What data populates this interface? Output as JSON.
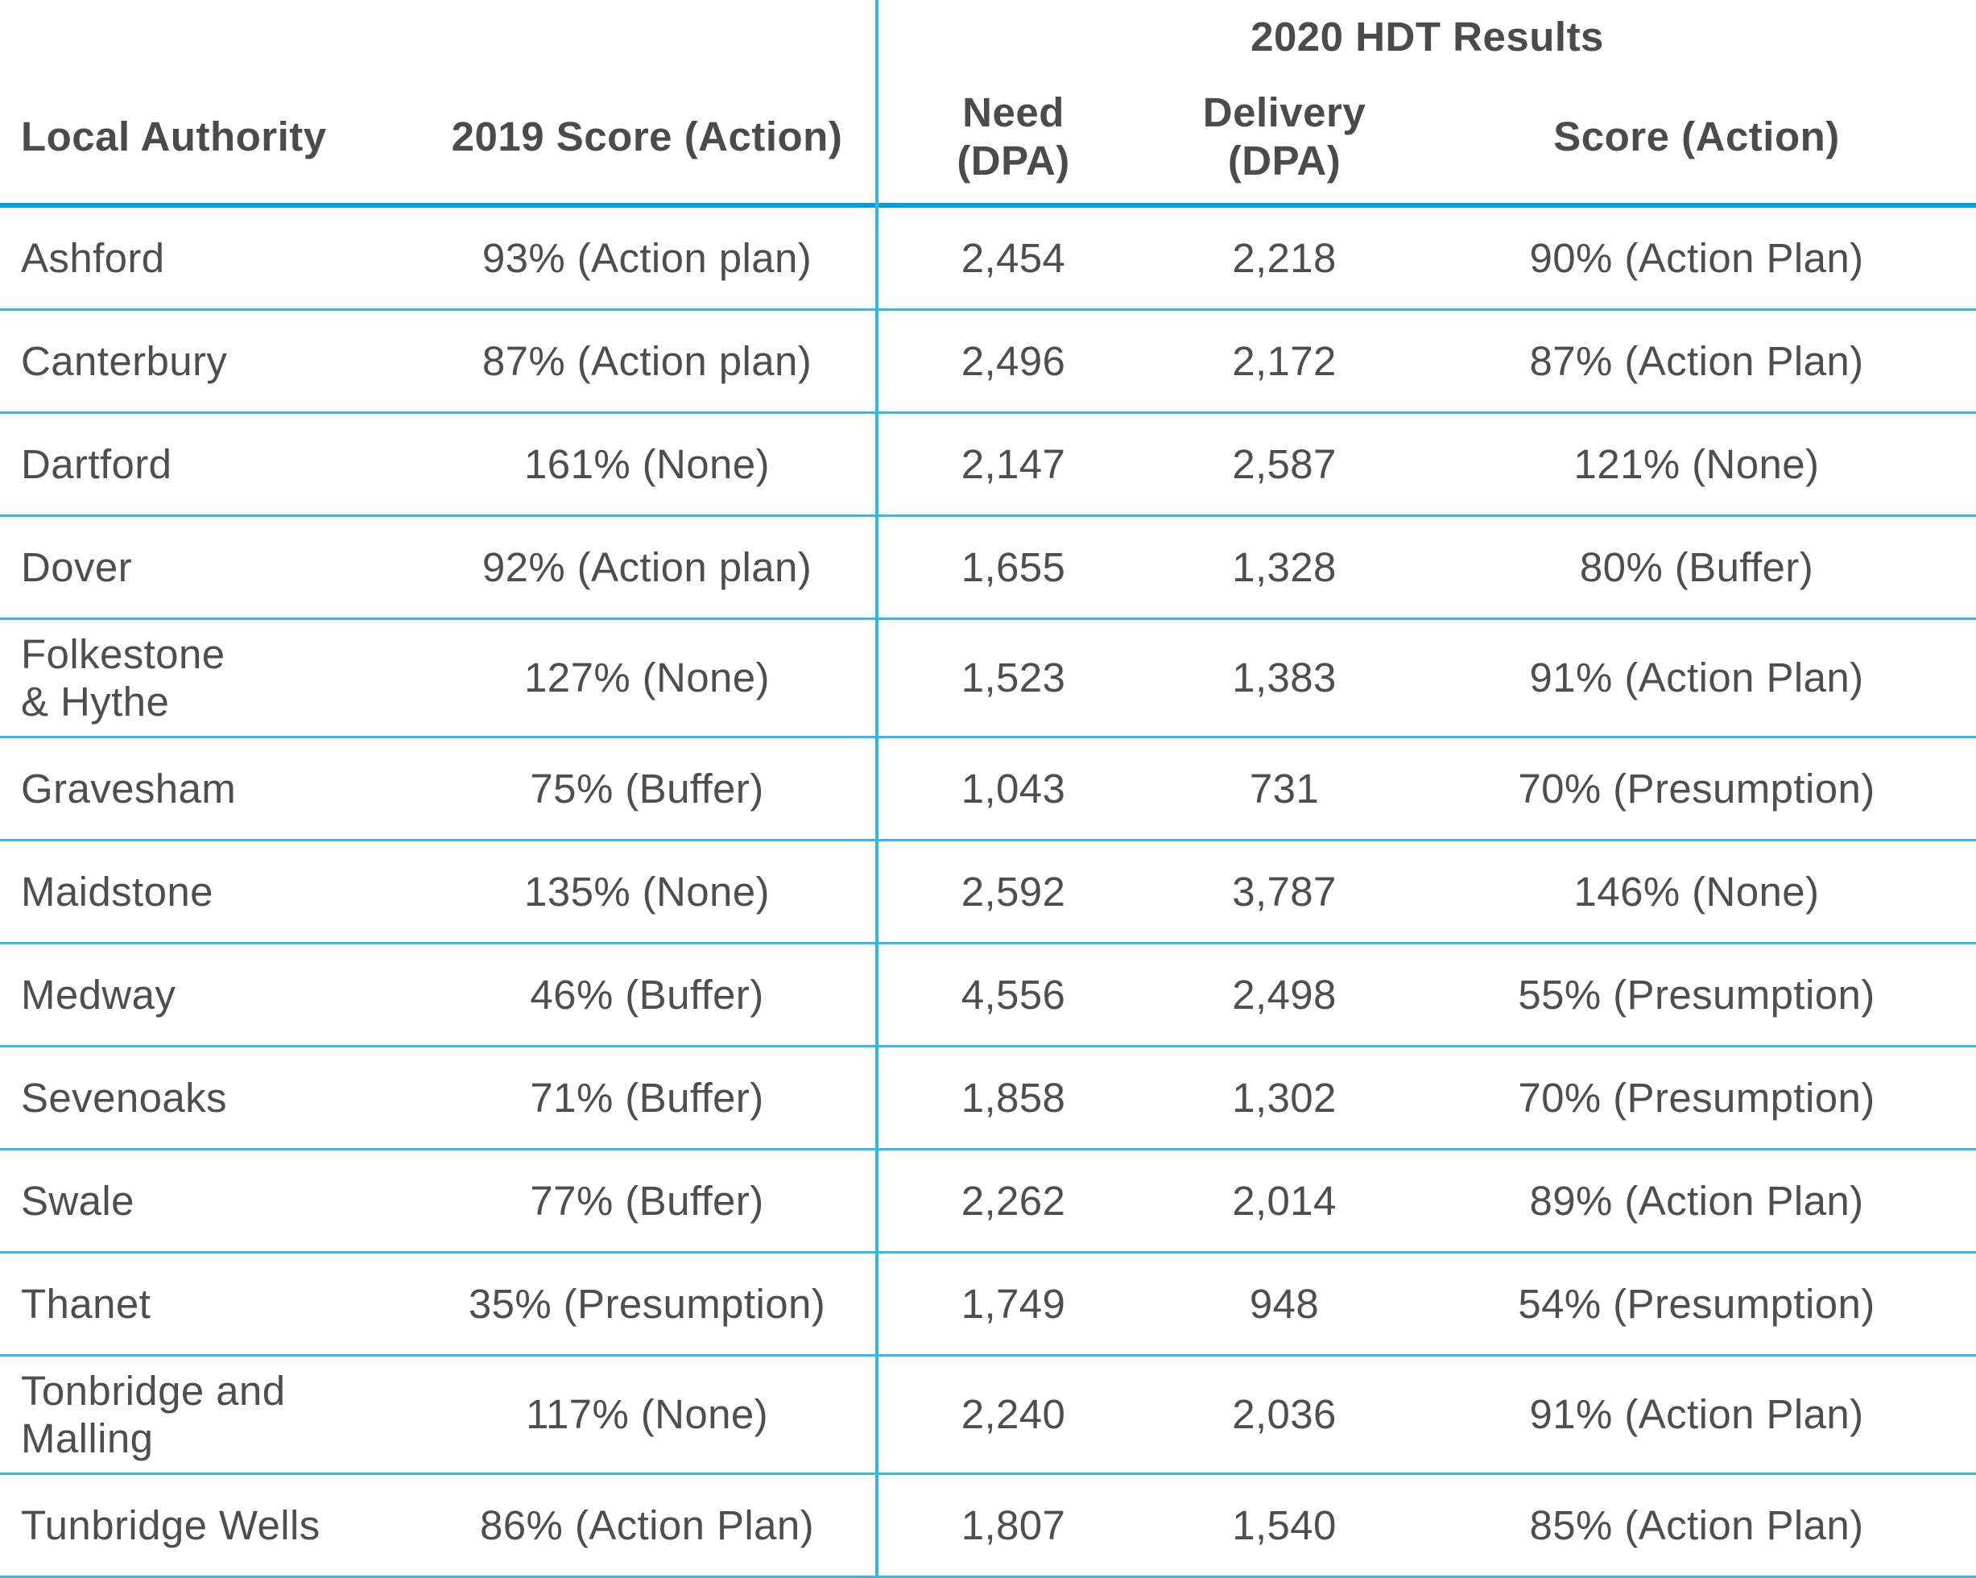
{
  "table": {
    "group_header": "2020 HDT Results",
    "columns": {
      "local_authority": "Local Authority",
      "score_2019": "2019 Score (Action)",
      "need": "Need\n(DPA)",
      "delivery": "Delivery\n(DPA)",
      "score_2020": "Score (Action)"
    },
    "colors": {
      "header_rule": "#079dd9",
      "row_separator": "#36bae3",
      "column_divider": "#2db9e3",
      "text": "#4d4f4e"
    },
    "rows": [
      {
        "name": "Ashford",
        "score_2019": "93% (Action plan)",
        "need": "2,454",
        "delivery": "2,218",
        "score_2020": "90% (Action Plan)"
      },
      {
        "name": "Canterbury",
        "score_2019": "87% (Action plan)",
        "need": "2,496",
        "delivery": "2,172",
        "score_2020": "87% (Action Plan)"
      },
      {
        "name": "Dartford",
        "score_2019": "161% (None)",
        "need": "2,147",
        "delivery": "2,587",
        "score_2020": "121% (None)"
      },
      {
        "name": "Dover",
        "score_2019": "92% (Action plan)",
        "need": "1,655",
        "delivery": "1,328",
        "score_2020": "80% (Buffer)"
      },
      {
        "name": "Folkestone\n& Hythe",
        "score_2019": "127% (None)",
        "need": "1,523",
        "delivery": "1,383",
        "score_2020": "91% (Action Plan)"
      },
      {
        "name": "Gravesham",
        "score_2019": "75% (Buffer)",
        "need": "1,043",
        "delivery": "731",
        "score_2020": "70% (Presumption)"
      },
      {
        "name": "Maidstone",
        "score_2019": "135% (None)",
        "need": "2,592",
        "delivery": "3,787",
        "score_2020": "146% (None)"
      },
      {
        "name": "Medway",
        "score_2019": "46% (Buffer)",
        "need": "4,556",
        "delivery": "2,498",
        "score_2020": "55% (Presumption)"
      },
      {
        "name": "Sevenoaks",
        "score_2019": "71% (Buffer)",
        "need": "1,858",
        "delivery": "1,302",
        "score_2020": "70% (Presumption)"
      },
      {
        "name": "Swale",
        "score_2019": "77% (Buffer)",
        "need": "2,262",
        "delivery": "2,014",
        "score_2020": "89% (Action Plan)"
      },
      {
        "name": "Thanet",
        "score_2019": "35% (Presumption)",
        "need": "1,749",
        "delivery": "948",
        "score_2020": "54% (Presumption)"
      },
      {
        "name": "Tonbridge and\nMalling",
        "score_2019": "117% (None)",
        "need": "2,240",
        "delivery": "2,036",
        "score_2020": "91% (Action Plan)"
      },
      {
        "name": "Tunbridge Wells",
        "score_2019": "86% (Action Plan)",
        "need": "1,807",
        "delivery": "1,540",
        "score_2020": "85% (Action Plan)"
      }
    ]
  },
  "chart_data": {
    "type": "table",
    "title": "2020 HDT Results",
    "columns": [
      "Local Authority",
      "2019 Score (Action)",
      "Need (DPA)",
      "Delivery (DPA)",
      "Score (Action)"
    ],
    "column_group": {
      "label": "2020 HDT Results",
      "spans_columns": [
        "Need (DPA)",
        "Delivery (DPA)",
        "Score (Action)"
      ]
    },
    "rows": [
      [
        "Ashford",
        "93% (Action plan)",
        2454,
        2218,
        "90% (Action Plan)"
      ],
      [
        "Canterbury",
        "87% (Action plan)",
        2496,
        2172,
        "87% (Action Plan)"
      ],
      [
        "Dartford",
        "161% (None)",
        2147,
        2587,
        "121% (None)"
      ],
      [
        "Dover",
        "92% (Action plan)",
        1655,
        1328,
        "80% (Buffer)"
      ],
      [
        "Folkestone & Hythe",
        "127% (None)",
        1523,
        1383,
        "91% (Action Plan)"
      ],
      [
        "Gravesham",
        "75% (Buffer)",
        1043,
        731,
        "70% (Presumption)"
      ],
      [
        "Maidstone",
        "135% (None)",
        2592,
        3787,
        "146% (None)"
      ],
      [
        "Medway",
        "46% (Buffer)",
        4556,
        2498,
        "55% (Presumption)"
      ],
      [
        "Sevenoaks",
        "71% (Buffer)",
        1858,
        1302,
        "70% (Presumption)"
      ],
      [
        "Swale",
        "77% (Buffer)",
        2262,
        2014,
        "89% (Action Plan)"
      ],
      [
        "Thanet",
        "35% (Presumption)",
        1749,
        948,
        "54% (Presumption)"
      ],
      [
        "Tonbridge and Malling",
        "117% (None)",
        2240,
        2036,
        "91% (Action Plan)"
      ],
      [
        "Tunbridge Wells",
        "86% (Action Plan)",
        1807,
        1540,
        "85% (Action Plan)"
      ]
    ]
  }
}
